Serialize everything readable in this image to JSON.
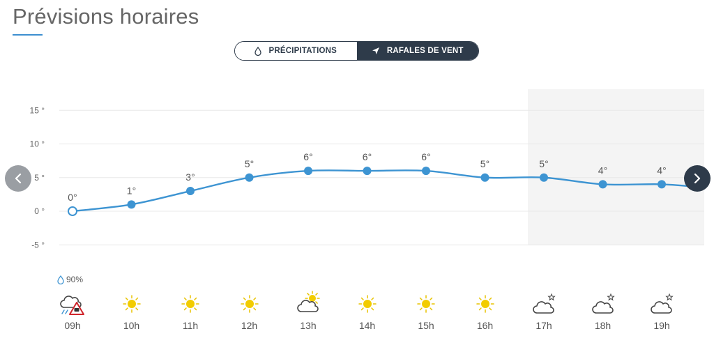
{
  "header": {
    "title": "Prévisions horaires"
  },
  "toggle": {
    "precipitations_label": "PRÉCIPITATIONS",
    "rafales_label": "RAFALES DE VENT",
    "active": "rafales"
  },
  "chart_data": {
    "type": "line",
    "x": [
      "09h",
      "10h",
      "11h",
      "12h",
      "13h",
      "14h",
      "15h",
      "16h",
      "17h",
      "18h",
      "19h"
    ],
    "y_ticks": [
      "15 °",
      "10 °",
      "5 °",
      "0 °",
      "-5 °"
    ],
    "y_tick_values": [
      15,
      10,
      5,
      0,
      -5
    ],
    "ylim": [
      -5,
      15
    ],
    "series": [
      {
        "values": [
          0,
          1,
          3,
          5,
          6,
          6,
          6,
          5,
          5,
          4,
          4
        ],
        "labels": [
          "0°",
          "1°",
          "3°",
          "5°",
          "6°",
          "6°",
          "6°",
          "5°",
          "5°",
          "4°",
          "4°"
        ]
      }
    ],
    "grid": true,
    "colors": {
      "line": "#3d94d2",
      "grid": "#e8e8e8",
      "night_band": "#f4f4f4"
    }
  },
  "forecast": [
    {
      "hour": "09h",
      "icon": "cloud-snow-warning-icon",
      "precip": "90%"
    },
    {
      "hour": "10h",
      "icon": "sun-icon"
    },
    {
      "hour": "11h",
      "icon": "sun-icon"
    },
    {
      "hour": "12h",
      "icon": "sun-icon"
    },
    {
      "hour": "13h",
      "icon": "sun-cloud-icon"
    },
    {
      "hour": "14h",
      "icon": "sun-icon"
    },
    {
      "hour": "15h",
      "icon": "sun-icon"
    },
    {
      "hour": "16h",
      "icon": "sun-icon"
    },
    {
      "hour": "17h",
      "icon": "cloud-star-icon"
    },
    {
      "hour": "18h",
      "icon": "cloud-star-icon"
    },
    {
      "hour": "19h",
      "icon": "cloud-star-icon"
    }
  ],
  "navigation": {
    "prev_icon": "chevron-left-icon",
    "next_icon": "chevron-right-icon"
  }
}
